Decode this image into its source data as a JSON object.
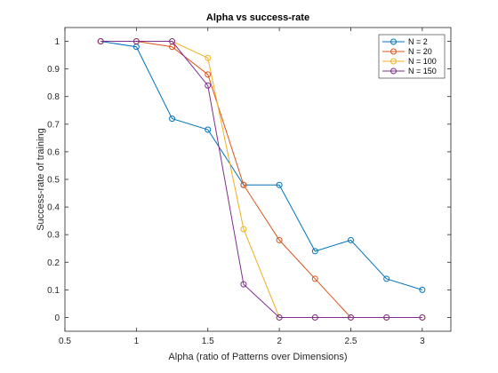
{
  "chart_data": {
    "type": "line",
    "title": "Alpha vs success-rate",
    "xlabel": "Alpha (ratio of Patterns over Dimensions)",
    "ylabel": "Success-rate of training",
    "xlim": [
      0.5,
      3.2
    ],
    "ylim": [
      -0.05,
      1.05
    ],
    "xticks": [
      0.5,
      1,
      1.5,
      2,
      2.5,
      3
    ],
    "xtick_labels": [
      "0.5",
      "1",
      "1.5",
      "2",
      "2.5",
      "3"
    ],
    "yticks": [
      0,
      0.1,
      0.2,
      0.3,
      0.4,
      0.5,
      0.6,
      0.7,
      0.8,
      0.9,
      1
    ],
    "ytick_labels": [
      "0",
      "0.1",
      "0.2",
      "0.3",
      "0.4",
      "0.5",
      "0.6",
      "0.7",
      "0.8",
      "0.9",
      "1"
    ],
    "grid": false,
    "legend_position": "top-right",
    "marker": "circle",
    "series": [
      {
        "name": "N = 2",
        "color": "#0072BD",
        "x": [
          0.75,
          1.0,
          1.25,
          1.5,
          1.75,
          2.0,
          2.25,
          2.5,
          2.75,
          3.0
        ],
        "y": [
          1.0,
          0.98,
          0.72,
          0.68,
          0.48,
          0.48,
          0.24,
          0.28,
          0.14,
          0.1
        ]
      },
      {
        "name": "N = 20",
        "color": "#D95319",
        "x": [
          0.75,
          1.0,
          1.25,
          1.5,
          1.75,
          2.0,
          2.25,
          2.5,
          2.75,
          3.0
        ],
        "y": [
          1.0,
          1.0,
          0.98,
          0.88,
          0.48,
          0.28,
          0.14,
          0.0,
          0.0,
          0.0
        ]
      },
      {
        "name": "N = 100",
        "color": "#EDB120",
        "x": [
          0.75,
          1.0,
          1.25,
          1.5,
          1.75,
          2.0,
          2.25,
          2.5,
          2.75,
          3.0
        ],
        "y": [
          1.0,
          1.0,
          1.0,
          0.94,
          0.32,
          0.0,
          0.0,
          0.0,
          0.0,
          0.0
        ]
      },
      {
        "name": "N = 150",
        "color": "#7E2F8E",
        "x": [
          0.75,
          1.0,
          1.25,
          1.5,
          1.75,
          2.0,
          2.25,
          2.5,
          2.75,
          3.0
        ],
        "y": [
          1.0,
          1.0,
          1.0,
          0.84,
          0.12,
          0.0,
          0.0,
          0.0,
          0.0,
          0.0
        ]
      }
    ]
  }
}
